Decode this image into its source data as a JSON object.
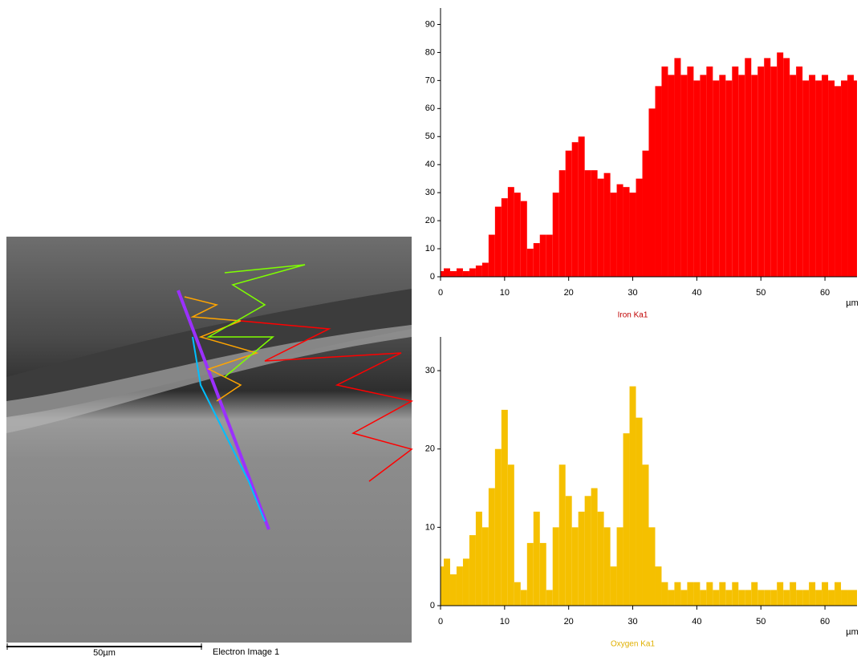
{
  "image": {
    "scale_bar_label": "50µm",
    "caption": "Electron Image 1"
  },
  "chart_data": [
    {
      "type": "bar",
      "title": "Iron Ka1",
      "x_label": "µm",
      "color": "#ff0000",
      "title_color": "#c00000",
      "x": [
        0,
        1,
        2,
        3,
        4,
        5,
        6,
        7,
        8,
        9,
        10,
        11,
        12,
        13,
        14,
        15,
        16,
        17,
        18,
        19,
        20,
        21,
        22,
        23,
        24,
        25,
        26,
        27,
        28,
        29,
        30,
        31,
        32,
        33,
        34,
        35,
        36,
        37,
        38,
        39,
        40,
        41,
        42,
        43,
        44,
        45,
        46,
        47,
        48,
        49,
        50,
        51,
        52,
        53,
        54,
        55,
        56,
        57,
        58,
        59,
        60,
        61,
        62,
        63,
        64,
        65
      ],
      "values": [
        2,
        3,
        2,
        3,
        2,
        3,
        4,
        5,
        15,
        25,
        28,
        32,
        30,
        27,
        10,
        12,
        15,
        15,
        30,
        38,
        45,
        48,
        50,
        38,
        38,
        35,
        37,
        30,
        33,
        32,
        30,
        35,
        45,
        60,
        68,
        75,
        72,
        78,
        72,
        75,
        70,
        72,
        75,
        70,
        72,
        70,
        75,
        72,
        78,
        72,
        75,
        78,
        75,
        80,
        78,
        72,
        75,
        70,
        72,
        70,
        72,
        70,
        68,
        70,
        72,
        70
      ],
      "xlim": [
        0,
        65
      ],
      "ylim": [
        0,
        95
      ],
      "xticks": [
        0,
        10,
        20,
        30,
        40,
        50,
        60
      ],
      "yticks": [
        0,
        10,
        20,
        30,
        40,
        50,
        60,
        70,
        80,
        90
      ],
      "grid": false
    },
    {
      "type": "bar",
      "title": "Oxygen Ka1",
      "x_label": "µm",
      "color": "#f5c000",
      "title_color": "#e0b000",
      "x": [
        0,
        1,
        2,
        3,
        4,
        5,
        6,
        7,
        8,
        9,
        10,
        11,
        12,
        13,
        14,
        15,
        16,
        17,
        18,
        19,
        20,
        21,
        22,
        23,
        24,
        25,
        26,
        27,
        28,
        29,
        30,
        31,
        32,
        33,
        34,
        35,
        36,
        37,
        38,
        39,
        40,
        41,
        42,
        43,
        44,
        45,
        46,
        47,
        48,
        49,
        50,
        51,
        52,
        53,
        54,
        55,
        56,
        57,
        58,
        59,
        60,
        61,
        62,
        63,
        64,
        65
      ],
      "values": [
        5,
        6,
        4,
        5,
        6,
        9,
        12,
        10,
        15,
        20,
        25,
        18,
        3,
        2,
        8,
        12,
        8,
        2,
        10,
        18,
        14,
        10,
        12,
        14,
        15,
        12,
        10,
        5,
        10,
        22,
        28,
        24,
        18,
        10,
        5,
        3,
        2,
        3,
        2,
        3,
        3,
        2,
        3,
        2,
        3,
        2,
        3,
        2,
        2,
        3,
        2,
        2,
        2,
        3,
        2,
        3,
        2,
        2,
        3,
        2,
        3,
        2,
        3,
        2,
        2,
        2
      ],
      "xlim": [
        0,
        65
      ],
      "ylim": [
        0,
        34
      ],
      "xticks": [
        0,
        10,
        20,
        30,
        40,
        50,
        60
      ],
      "yticks": [
        0,
        10,
        20,
        30
      ],
      "grid": false
    }
  ]
}
